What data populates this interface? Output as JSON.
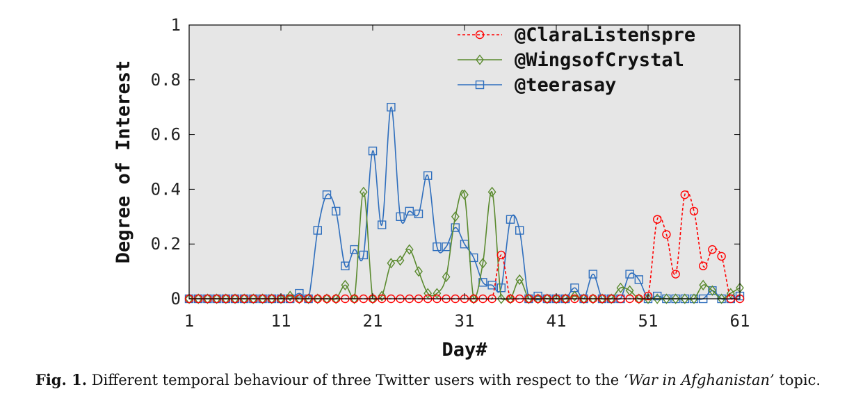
{
  "chart_data": {
    "type": "line",
    "xlabel": "Day#",
    "ylabel": "Degree of Interest",
    "xlim": [
      1,
      61
    ],
    "ylim": [
      0,
      1
    ],
    "x_ticks": [
      1,
      11,
      21,
      31,
      41,
      51,
      61
    ],
    "y_ticks": [
      0,
      0.2,
      0.4,
      0.6,
      0.8,
      1
    ],
    "y_tick_labels": [
      "0",
      "0.2",
      "0.4",
      "0.6",
      "0.8",
      "1"
    ],
    "grid": false,
    "legend_position": "top-right",
    "x": [
      1,
      2,
      3,
      4,
      5,
      6,
      7,
      8,
      9,
      10,
      11,
      12,
      13,
      14,
      15,
      16,
      17,
      18,
      19,
      20,
      21,
      22,
      23,
      24,
      25,
      26,
      27,
      28,
      29,
      30,
      31,
      32,
      33,
      34,
      35,
      36,
      37,
      38,
      39,
      40,
      41,
      42,
      43,
      44,
      45,
      46,
      47,
      48,
      49,
      50,
      51,
      52,
      53,
      54,
      55,
      56,
      57,
      58,
      59,
      60,
      61
    ],
    "series": [
      {
        "name": "@ClaraListenspre",
        "color": "#ff0000",
        "marker": "circle",
        "dashed": true,
        "values": [
          0,
          0,
          0,
          0,
          0,
          0,
          0,
          0,
          0,
          0,
          0,
          0,
          0,
          0,
          0,
          0,
          0,
          0,
          0,
          0,
          0,
          0,
          0,
          0,
          0,
          0,
          0,
          0,
          0,
          0,
          0,
          0,
          0,
          0,
          0.16,
          0,
          0,
          0,
          0,
          0,
          0,
          0,
          0,
          0,
          0,
          0,
          0,
          0,
          0,
          0,
          0.01,
          0.29,
          0.235,
          0.09,
          0.38,
          0.32,
          0.12,
          0.18,
          0.155,
          0,
          0
        ]
      },
      {
        "name": "@WingsofCrystal",
        "color": "#5a8a2e",
        "marker": "diamond",
        "dashed": false,
        "values": [
          0,
          0,
          0,
          0,
          0,
          0,
          0,
          0,
          0,
          0,
          0,
          0.01,
          0,
          0,
          0,
          0,
          0,
          0.05,
          0,
          0.39,
          0,
          0.01,
          0.13,
          0.14,
          0.18,
          0.1,
          0.02,
          0.02,
          0.08,
          0.3,
          0.38,
          0,
          0.13,
          0.39,
          0,
          0,
          0.07,
          0,
          0,
          0,
          0,
          0,
          0.01,
          0,
          0,
          0,
          0,
          0.04,
          0.03,
          0,
          0,
          0,
          0,
          0,
          0,
          0,
          0.05,
          0.03,
          0,
          0.02,
          0.04
        ]
      },
      {
        "name": "@teerasay",
        "color": "#2e6ebd",
        "marker": "square",
        "dashed": false,
        "values": [
          0,
          0,
          0,
          0,
          0,
          0,
          0,
          0,
          0,
          0,
          0,
          0,
          0.02,
          0,
          0.25,
          0.38,
          0.32,
          0.12,
          0.18,
          0.16,
          0.54,
          0.27,
          0.7,
          0.3,
          0.32,
          0.31,
          0.45,
          0.19,
          0.19,
          0.26,
          0.2,
          0.15,
          0.06,
          0.05,
          0.04,
          0.29,
          0.25,
          0,
          0.01,
          0,
          0,
          0,
          0.04,
          0,
          0.09,
          0,
          0,
          0,
          0.09,
          0.07,
          0,
          0.01,
          0,
          0,
          0,
          0,
          0,
          0.03,
          0,
          0,
          0.01
        ]
      }
    ]
  },
  "caption": {
    "label": "Fig. 1.",
    "text_before": " Different temporal behaviour of three Twitter users with respect to the ",
    "topic": "‘War in Afghanistan’",
    "text_after": " topic."
  }
}
